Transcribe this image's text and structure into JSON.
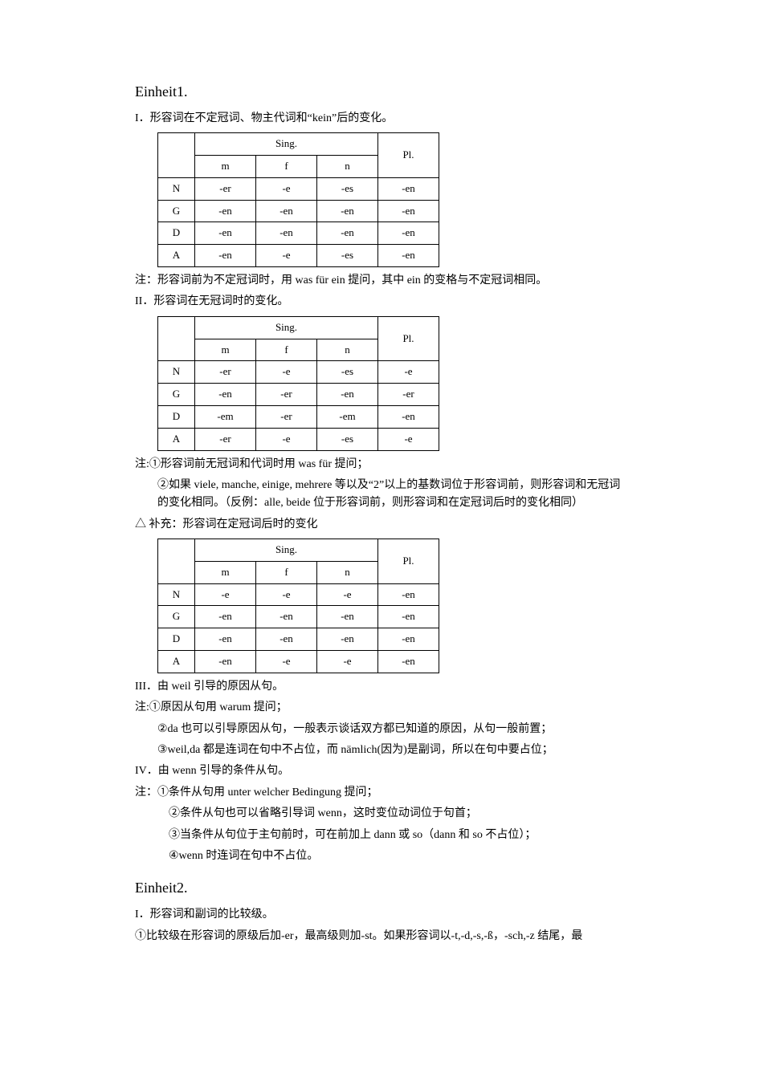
{
  "einheit1": {
    "title": "Einheit1.",
    "section1": {
      "heading": "I．形容词在不定冠词、物主代词和“kein”后的变化。",
      "table": {
        "header_sing": "Sing.",
        "header_pl": "Pl.",
        "sub_m": "m",
        "sub_f": "f",
        "sub_n": "n",
        "rows": [
          {
            "case": "N",
            "m": "-er",
            "f": "-e",
            "n": "-es",
            "pl": "-en"
          },
          {
            "case": "G",
            "m": "-en",
            "f": "-en",
            "n": "-en",
            "pl": "-en"
          },
          {
            "case": "D",
            "m": "-en",
            "f": "-en",
            "n": "-en",
            "pl": "-en"
          },
          {
            "case": "A",
            "m": "-en",
            "f": "-e",
            "n": "-es",
            "pl": "-en"
          }
        ]
      },
      "note": "注：形容词前为不定冠词时，用 was für ein 提问，其中 ein 的变格与不定冠词相同。"
    },
    "section2": {
      "heading": "II．形容词在无冠词时的变化。",
      "table": {
        "header_sing": "Sing.",
        "header_pl": "Pl.",
        "sub_m": "m",
        "sub_f": "f",
        "sub_n": "n",
        "rows": [
          {
            "case": "N",
            "m": "-er",
            "f": "-e",
            "n": "-es",
            "pl": "-e"
          },
          {
            "case": "G",
            "m": "-en",
            "f": "-er",
            "n": "-en",
            "pl": "-er"
          },
          {
            "case": "D",
            "m": "-em",
            "f": "-er",
            "n": "-em",
            "pl": "-en"
          },
          {
            "case": "A",
            "m": "-er",
            "f": "-e",
            "n": "-es",
            "pl": "-e"
          }
        ]
      },
      "note1": "注:①形容词前无冠词和代词时用 was für 提问；",
      "note2": "②如果 viele, manche, einige, mehrere 等以及“2”以上的基数词位于形容词前，则形容词和无冠词的变化相同。（反例：alle, beide 位于形容词前，则形容词和在定冠词后时的变化相同）"
    },
    "supplement": {
      "heading": "△ 补充：形容词在定冠词后时的变化",
      "table": {
        "header_sing": "Sing.",
        "header_pl": "Pl.",
        "sub_m": "m",
        "sub_f": "f",
        "sub_n": "n",
        "rows": [
          {
            "case": "N",
            "m": "-e",
            "f": "-e",
            "n": "-e",
            "pl": "-en"
          },
          {
            "case": "G",
            "m": "-en",
            "f": "-en",
            "n": "-en",
            "pl": "-en"
          },
          {
            "case": "D",
            "m": "-en",
            "f": "-en",
            "n": "-en",
            "pl": "-en"
          },
          {
            "case": "A",
            "m": "-en",
            "f": "-e",
            "n": "-e",
            "pl": "-en"
          }
        ]
      }
    },
    "section3": {
      "heading": "III．由 weil 引导的原因从句。",
      "note1": "注:①原因从句用 warum 提问；",
      "note2": "②da 也可以引导原因从句，一般表示谈话双方都已知道的原因，从句一般前置；",
      "note3": "③weil,da 都是连词在句中不占位，而 nämlich(因为)是副词，所以在句中要占位；"
    },
    "section4": {
      "heading": "IV．由 wenn 引导的条件从句。",
      "note1": "注：①条件从句用 unter welcher Bedingung 提问；",
      "note2": "②条件从句也可以省略引导词 wenn，这时变位动词位于句首；",
      "note3": "③当条件从句位于主句前时，可在前加上 dann 或 so（dann 和 so 不占位）；",
      "note4": "④wenn 时连词在句中不占位。"
    }
  },
  "einheit2": {
    "title": "Einheit2.",
    "section1": {
      "heading": "I．形容词和副词的比较级。",
      "note1": "①比较级在形容词的原级后加-er，最高级则加-st。如果形容词以-t,-d,-s,-ß，-sch,-z 结尾，最"
    }
  },
  "style": {
    "table_border_color": "#000000",
    "text_color": "#000000",
    "background_color": "#ffffff",
    "heading_fontsize": 18,
    "body_fontsize": 14,
    "table_fontsize": 13,
    "col_case_width": 46,
    "col_gender_width": 76,
    "col_plural_width": 76
  }
}
